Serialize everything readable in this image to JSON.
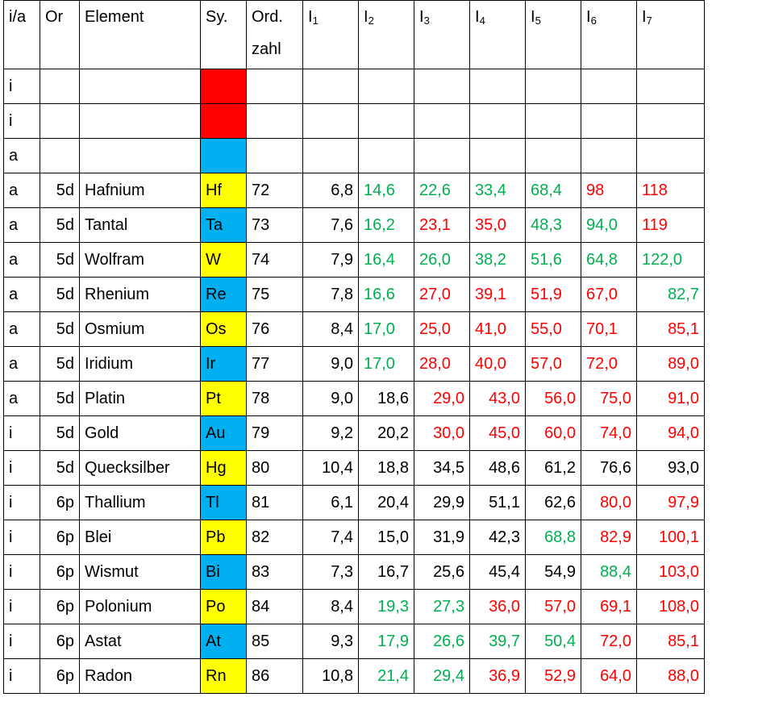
{
  "colors": {
    "red_cell": "#FF0000",
    "blue_cell": "#00B0F0",
    "yellow_cell": "#FFFF00",
    "green": "#00B050",
    "red": "#FF0000",
    "black": "#000000"
  },
  "headers": [
    {
      "main": "i/a",
      "sub": "",
      "line2": ""
    },
    {
      "main": "Or",
      "sub": "",
      "line2": ""
    },
    {
      "main": "Element",
      "sub": "",
      "line2": ""
    },
    {
      "main": "Sy.",
      "sub": "",
      "line2": ""
    },
    {
      "main": "Ord.",
      "sub": "",
      "line2": "zahl"
    },
    {
      "main": "I",
      "sub": "1",
      "line2": ""
    },
    {
      "main": "I",
      "sub": "2",
      "line2": ""
    },
    {
      "main": "I",
      "sub": "3",
      "line2": ""
    },
    {
      "main": "I",
      "sub": "4",
      "line2": ""
    },
    {
      "main": "I",
      "sub": "5",
      "line2": ""
    },
    {
      "main": "I",
      "sub": "6",
      "line2": ""
    },
    {
      "main": "I",
      "sub": "7",
      "line2": ""
    }
  ],
  "rows": [
    {
      "ia": "i",
      "or": "",
      "element": "",
      "symbol": "",
      "symbol_color": "red_cell",
      "ordzahl": "",
      "ion": [],
      "ion_colors": []
    },
    {
      "ia": "i",
      "or": "",
      "element": "",
      "symbol": "",
      "symbol_color": "red_cell",
      "ordzahl": "",
      "ion": [],
      "ion_colors": []
    },
    {
      "ia": "a",
      "or": "",
      "element": "",
      "symbol": "",
      "symbol_color": "blue_cell",
      "ordzahl": "",
      "ion": [],
      "ion_colors": []
    },
    {
      "ia": "a",
      "or": "5d",
      "element": "Hafnium",
      "symbol": "Hf",
      "symbol_color": "yellow_cell",
      "ordzahl": "72",
      "ion": [
        "6,8",
        "14,6",
        "22,6",
        "33,4",
        "68,4",
        "98",
        "118"
      ],
      "ion_colors": [
        "black",
        "green",
        "green",
        "green",
        "green",
        "red",
        "red"
      ],
      "ion_align": [
        "r",
        "l",
        "l",
        "l",
        "l",
        "l",
        "l"
      ]
    },
    {
      "ia": "a",
      "or": "5d",
      "element": "Tantal",
      "symbol": "Ta",
      "symbol_color": "blue_cell",
      "ordzahl": "73",
      "ion": [
        "7,6",
        "16,2",
        "23,1",
        "35,0",
        "48,3",
        "94,0",
        "119"
      ],
      "ion_colors": [
        "black",
        "green",
        "red",
        "red",
        "green",
        "green",
        "red"
      ],
      "ion_align": [
        "r",
        "l",
        "l",
        "l",
        "l",
        "l",
        "l"
      ]
    },
    {
      "ia": "a",
      "or": "5d",
      "element": "Wolfram",
      "symbol": "W",
      "symbol_color": "yellow_cell",
      "ordzahl": "74",
      "ion": [
        "7,9",
        "16,4",
        "26,0",
        "38,2",
        "51,6",
        "64,8",
        "122,0"
      ],
      "ion_colors": [
        "black",
        "green",
        "green",
        "green",
        "green",
        "green",
        "green"
      ],
      "ion_align": [
        "r",
        "l",
        "l",
        "l",
        "l",
        "l",
        "l"
      ]
    },
    {
      "ia": "a",
      "or": "5d",
      "element": "Rhenium",
      "symbol": "Re",
      "symbol_color": "blue_cell",
      "ordzahl": "75",
      "ion": [
        "7,8",
        "16,6",
        "27,0",
        "39,1",
        "51,9",
        "67,0",
        "82,7"
      ],
      "ion_colors": [
        "black",
        "green",
        "red",
        "red",
        "red",
        "red",
        "green"
      ],
      "ion_align": [
        "r",
        "l",
        "l",
        "l",
        "l",
        "l",
        "r"
      ]
    },
    {
      "ia": "a",
      "or": "5d",
      "element": "Osmium",
      "symbol": "Os",
      "symbol_color": "yellow_cell",
      "ordzahl": "76",
      "ion": [
        "8,4",
        "17,0",
        "25,0",
        "41,0",
        "55,0",
        "70,1",
        "85,1"
      ],
      "ion_colors": [
        "black",
        "green",
        "red",
        "red",
        "red",
        "red",
        "red"
      ],
      "ion_align": [
        "r",
        "l",
        "l",
        "l",
        "l",
        "l",
        "r"
      ]
    },
    {
      "ia": "a",
      "or": "5d",
      "element": "Iridium",
      "symbol": "Ir",
      "symbol_color": "blue_cell",
      "ordzahl": "77",
      "ion": [
        "9,0",
        "17,0",
        "28,0",
        "40,0",
        "57,0",
        "72,0",
        "89,0"
      ],
      "ion_colors": [
        "black",
        "green",
        "red",
        "red",
        "red",
        "red",
        "red"
      ],
      "ion_align": [
        "r",
        "l",
        "l",
        "l",
        "l",
        "l",
        "r"
      ]
    },
    {
      "ia": "a",
      "or": "5d",
      "element": "Platin",
      "symbol": "Pt",
      "symbol_color": "yellow_cell",
      "ordzahl": "78",
      "ion": [
        "9,0",
        "18,6",
        "29,0",
        "43,0",
        "56,0",
        "75,0",
        "91,0"
      ],
      "ion_colors": [
        "black",
        "black",
        "red",
        "red",
        "red",
        "red",
        "red"
      ],
      "ion_align": [
        "r",
        "r",
        "r",
        "r",
        "r",
        "r",
        "r"
      ]
    },
    {
      "ia": "i",
      "or": "5d",
      "element": "Gold",
      "symbol": "Au",
      "symbol_color": "blue_cell",
      "ordzahl": "79",
      "ion": [
        "9,2",
        "20,2",
        "30,0",
        "45,0",
        "60,0",
        "74,0",
        "94,0"
      ],
      "ion_colors": [
        "black",
        "black",
        "red",
        "red",
        "red",
        "red",
        "red"
      ],
      "ion_align": [
        "r",
        "r",
        "r",
        "r",
        "r",
        "r",
        "r"
      ]
    },
    {
      "ia": "i",
      "or": "5d",
      "element": "Quecksilber",
      "symbol": "Hg",
      "symbol_color": "yellow_cell",
      "ordzahl": "80",
      "ion": [
        "10,4",
        "18,8",
        "34,5",
        "48,6",
        "61,2",
        "76,6",
        "93,0"
      ],
      "ion_colors": [
        "black",
        "black",
        "black",
        "black",
        "black",
        "black",
        "black"
      ],
      "ion_align": [
        "r",
        "r",
        "r",
        "r",
        "r",
        "r",
        "r"
      ]
    },
    {
      "ia": "i",
      "or": "6p",
      "element": "Thallium",
      "symbol": "Tl",
      "symbol_color": "blue_cell",
      "ordzahl": "81",
      "ion": [
        "6,1",
        "20,4",
        "29,9",
        "51,1",
        "62,6",
        "80,0",
        "97,9"
      ],
      "ion_colors": [
        "black",
        "black",
        "black",
        "black",
        "black",
        "red",
        "red"
      ],
      "ion_align": [
        "r",
        "r",
        "r",
        "r",
        "r",
        "r",
        "r"
      ]
    },
    {
      "ia": "i",
      "or": "6p",
      "element": "Blei",
      "symbol": "Pb",
      "symbol_color": "yellow_cell",
      "ordzahl": "82",
      "ion": [
        "7,4",
        "15,0",
        "31,9",
        "42,3",
        "68,8",
        "82,9",
        "100,1"
      ],
      "ion_colors": [
        "black",
        "black",
        "black",
        "black",
        "green",
        "red",
        "red"
      ],
      "ion_align": [
        "r",
        "r",
        "r",
        "r",
        "r",
        "r",
        "r"
      ]
    },
    {
      "ia": "i",
      "or": "6p",
      "element": "Wismut",
      "symbol": "Bi",
      "symbol_color": "blue_cell",
      "ordzahl": "83",
      "ion": [
        "7,3",
        "16,7",
        "25,6",
        "45,4",
        "54,9",
        "88,4",
        "103,0"
      ],
      "ion_colors": [
        "black",
        "black",
        "black",
        "black",
        "black",
        "green",
        "red"
      ],
      "ion_align": [
        "r",
        "r",
        "r",
        "r",
        "r",
        "r",
        "r"
      ]
    },
    {
      "ia": "i",
      "or": "6p",
      "element": "Polonium",
      "symbol": "Po",
      "symbol_color": "yellow_cell",
      "ordzahl": "84",
      "ion": [
        "8,4",
        "19,3",
        "27,3",
        "36,0",
        "57,0",
        "69,1",
        "108,0"
      ],
      "ion_colors": [
        "black",
        "green",
        "green",
        "red",
        "red",
        "red",
        "red"
      ],
      "ion_align": [
        "r",
        "r",
        "r",
        "r",
        "r",
        "r",
        "r"
      ]
    },
    {
      "ia": "i",
      "or": "6p",
      "element": "Astat",
      "symbol": "At",
      "symbol_color": "blue_cell",
      "ordzahl": "85",
      "ion": [
        "9,3",
        "17,9",
        "26,6",
        "39,7",
        "50,4",
        "72,0",
        "85,1"
      ],
      "ion_colors": [
        "black",
        "green",
        "green",
        "green",
        "green",
        "red",
        "red"
      ],
      "ion_align": [
        "r",
        "r",
        "r",
        "r",
        "r",
        "r",
        "r"
      ]
    },
    {
      "ia": "i",
      "or": "6p",
      "element": "Radon",
      "symbol": "Rn",
      "symbol_color": "yellow_cell",
      "ordzahl": "86",
      "ion": [
        "10,8",
        "21,4",
        "29,4",
        "36,9",
        "52,9",
        "64,0",
        "88,0"
      ],
      "ion_colors": [
        "black",
        "green",
        "green",
        "red",
        "red",
        "red",
        "red"
      ],
      "ion_align": [
        "r",
        "r",
        "r",
        "r",
        "r",
        "r",
        "r"
      ]
    }
  ]
}
